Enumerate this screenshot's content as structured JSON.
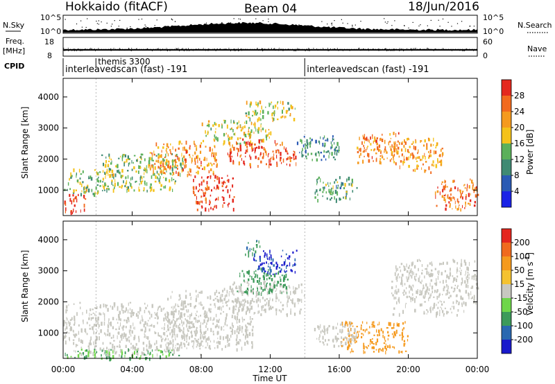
{
  "header": {
    "station": "Hokkaido (fitACF)",
    "beam": "Beam 04",
    "date": "18/Jun/2016"
  },
  "left_labels": {
    "nsky": "N.Sky",
    "freq_line1": "Freq.",
    "freq_line2": "[MHz]",
    "cpid": "CPID"
  },
  "right_labels": {
    "nsearch": "N.Search",
    "nave": "Nave"
  },
  "summary_axes": {
    "noise_left_ticks": [
      "10^5",
      "10^0"
    ],
    "noise_right_ticks": [
      "10^5",
      "10^0"
    ],
    "freq_ticks": [
      "18",
      "8"
    ],
    "nave_ticks": [
      "60",
      "0"
    ]
  },
  "cpid_segments": [
    {
      "label": "interleavedscan (fast) -191",
      "start_hour": 0.0,
      "end_hour": 14.0
    },
    {
      "label": "interleavedscan (fast) -191",
      "start_hour": 14.0,
      "end_hour": 24.0
    }
  ],
  "cpid_extra": {
    "label": "themis 3300",
    "start_hour": 1.9
  },
  "x_axis": {
    "label": "Time UT",
    "ticks": [
      "00:00",
      "04:00",
      "08:00",
      "12:00",
      "16:00",
      "20:00",
      "00:00"
    ],
    "tick_hours": [
      0,
      4,
      8,
      12,
      16,
      20,
      24
    ],
    "range": [
      0,
      24
    ]
  },
  "panels": {
    "power": {
      "ylabel": "Slant Range [km]",
      "yticks": [
        "1000",
        "2000",
        "3000",
        "4000"
      ],
      "ytick_values": [
        1000,
        2000,
        3000,
        4000
      ],
      "ylim": [
        180,
        4600
      ]
    },
    "velocity": {
      "ylabel": "Slant Range [km]",
      "yticks": [
        "1000",
        "2000",
        "3000",
        "4000"
      ],
      "ytick_values": [
        1000,
        2000,
        3000,
        4000
      ],
      "ylim": [
        180,
        4600
      ]
    }
  },
  "colorbars": {
    "power": {
      "title": "Power [dB]",
      "ticks": [
        "4",
        "8",
        "12",
        "16",
        "20",
        "24",
        "28"
      ],
      "colors": [
        "#1a22e6",
        "#2a5ab4",
        "#3f8a73",
        "#5bb05a",
        "#f4c21a",
        "#f59a1e",
        "#f26a1e",
        "#e4281e"
      ]
    },
    "velocity": {
      "title_main": "Velocity [m s",
      "title_sup": "-1",
      "title_end": "]",
      "ticks": [
        "200",
        "100",
        "50",
        "15",
        "-15",
        "-50",
        "-100",
        "-200"
      ],
      "colors": [
        "#1a1acc",
        "#2a68b0",
        "#3c9a5a",
        "#6ed64a",
        "#c8c8c0",
        "#f4c230",
        "#f59a1e",
        "#f06a1e",
        "#e4261e"
      ]
    }
  },
  "chart_data": {
    "type": "heatmap",
    "title": "Hokkaido (fitACF)",
    "subtitle": "Beam 04 — 18/Jun/2016",
    "xlabel": "Time UT",
    "ylabel": "Slant Range [km]",
    "xlim": [
      0,
      24
    ],
    "ylim": [
      180,
      4600
    ],
    "grid": false,
    "series": [
      {
        "name": "Power [dB]",
        "range": [
          0,
          30
        ],
        "blobs": [
          {
            "t0": 0.0,
            "t1": 1.3,
            "r0": 300,
            "r1": 900,
            "value": 28
          },
          {
            "t0": 0.0,
            "t1": 3.0,
            "r0": 900,
            "r1": 1700,
            "value": 14
          },
          {
            "t0": 2.0,
            "t1": 7.0,
            "r0": 1000,
            "r1": 2200,
            "value": 14
          },
          {
            "t0": 5.0,
            "t1": 9.0,
            "r0": 1500,
            "r1": 2600,
            "value": 22
          },
          {
            "t0": 7.5,
            "t1": 10.0,
            "r0": 400,
            "r1": 1500,
            "value": 27
          },
          {
            "t0": 8.0,
            "t1": 12.0,
            "r0": 2500,
            "r1": 3300,
            "value": 16
          },
          {
            "t0": 9.5,
            "t1": 13.5,
            "r0": 1800,
            "r1": 2700,
            "value": 27
          },
          {
            "t0": 10.5,
            "t1": 13.5,
            "r0": 3300,
            "r1": 3900,
            "value": 15
          },
          {
            "t0": 13.5,
            "t1": 16.0,
            "r0": 2000,
            "r1": 2800,
            "value": 10
          },
          {
            "t0": 14.5,
            "t1": 17.0,
            "r0": 700,
            "r1": 1500,
            "value": 12
          },
          {
            "t0": 17.0,
            "t1": 19.5,
            "r0": 1900,
            "r1": 2900,
            "value": 22
          },
          {
            "t0": 19.0,
            "t1": 22.0,
            "r0": 1600,
            "r1": 2700,
            "value": 20
          },
          {
            "t0": 21.5,
            "t1": 24.0,
            "r0": 400,
            "r1": 1400,
            "value": 24
          }
        ]
      },
      {
        "name": "Velocity [m s-1]",
        "range": [
          -200,
          200
        ],
        "blobs": [
          {
            "t0": 0.0,
            "t1": 8.0,
            "r0": 300,
            "r1": 2000,
            "value": 0
          },
          {
            "t0": 0.0,
            "t1": 7.0,
            "r0": 200,
            "r1": 500,
            "value": 30
          },
          {
            "t0": 6.0,
            "t1": 11.0,
            "r0": 500,
            "r1": 2400,
            "value": 0
          },
          {
            "t0": 9.0,
            "t1": 14.0,
            "r0": 1600,
            "r1": 2700,
            "value": 0
          },
          {
            "t0": 10.0,
            "t1": 13.0,
            "r0": 2300,
            "r1": 3100,
            "value": 45
          },
          {
            "t0": 11.0,
            "t1": 13.5,
            "r0": 2900,
            "r1": 3700,
            "value": 150
          },
          {
            "t0": 10.5,
            "t1": 11.5,
            "r0": 3500,
            "r1": 4000,
            "value": 70
          },
          {
            "t0": 16.0,
            "t1": 20.0,
            "r0": 400,
            "r1": 1400,
            "value": -55
          },
          {
            "t0": 14.5,
            "t1": 17.0,
            "r0": 600,
            "r1": 1400,
            "value": 0
          },
          {
            "t0": 19.0,
            "t1": 24.0,
            "r0": 1600,
            "r1": 3400,
            "value": 0
          }
        ]
      }
    ]
  }
}
